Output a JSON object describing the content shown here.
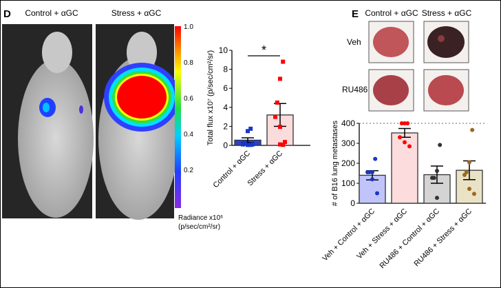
{
  "panel_d": {
    "letter": "D",
    "image_labels": [
      "Control + αGC",
      "Stress + αGC"
    ],
    "colorbar": {
      "ticks": [
        "1.0",
        "0.8",
        "0.6",
        "0.4",
        "0.2"
      ],
      "label_line1": "Radiance x10⁶",
      "label_line2": "(p/sec/cm²/sr)"
    }
  },
  "panel_e": {
    "letter": "E",
    "column_labels": [
      "Control + αGC",
      "Stress + αGC"
    ],
    "row_labels": [
      "Veh",
      "RU486"
    ]
  },
  "chart_data": [
    {
      "type": "bar",
      "title": "",
      "ylabel": "Total flux x10⁷ (p/sec/cm²/sr)",
      "ylim": [
        0,
        10
      ],
      "yticks": [
        "0",
        "2",
        "4",
        "6",
        "8",
        "10"
      ],
      "categories": [
        "Control + αGC",
        "Stress + αGC"
      ],
      "values": [
        0.55,
        3.2
      ],
      "sem": [
        0.25,
        1.2
      ],
      "points": [
        [
          1.75,
          1.5,
          0.3,
          0.1,
          0.05,
          0.1,
          0.05
        ],
        [
          8.8,
          7.0,
          4.5,
          3.0,
          1.95,
          0.35,
          0.05,
          0.1
        ]
      ],
      "colors": {
        "fill": [
          "#2a3fd0",
          "#fadcdc"
        ],
        "point": [
          "#1a36c8",
          "#ff0000"
        ]
      },
      "significance": "*"
    },
    {
      "type": "bar",
      "title": "",
      "ylabel": "# of B16 lung metastases",
      "ylim": [
        0,
        400
      ],
      "yticks": [
        "0",
        "100",
        "200",
        "300",
        "400"
      ],
      "categories": [
        "Veh + Control + αGC",
        "Veh + Stress + αGC",
        "RU486 + Control + αGC",
        "RU486 + Stress + αGC"
      ],
      "values": [
        140,
        352,
        143,
        165
      ],
      "sem": [
        23,
        22,
        43,
        47
      ],
      "points": [
        [
          222,
          155,
          155,
          155,
          120,
          50
        ],
        [
          400,
          400,
          400,
          330,
          305,
          285
        ],
        [
          292,
          162,
          127,
          127,
          27
        ],
        [
          367,
          205,
          155,
          142,
          72,
          47
        ]
      ],
      "colors": {
        "fill": [
          "#c0c4fa",
          "#fcdcdc",
          "#d4d4d4",
          "#eae2c4"
        ],
        "point": [
          "#1a36c8",
          "#ff0000",
          "#333333",
          "#9a6a1e"
        ]
      },
      "reference_line": 400
    }
  ]
}
